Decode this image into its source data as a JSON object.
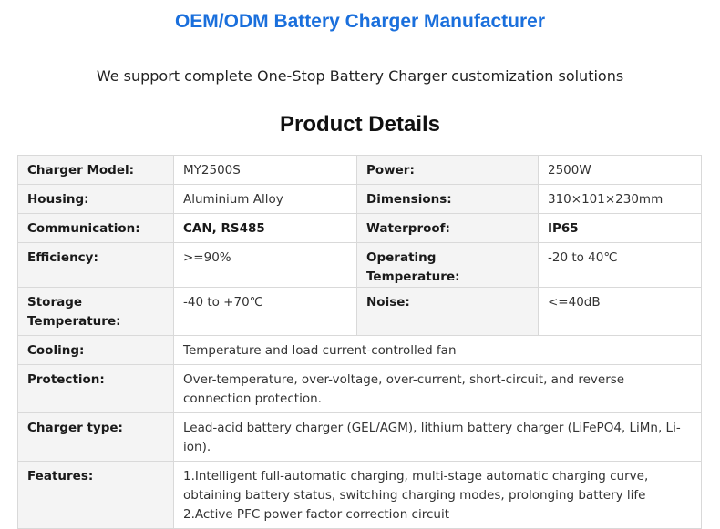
{
  "header": {
    "title": "OEM/ODM Battery Charger Manufacturer",
    "subtitle": "We support complete One-Stop Battery Charger customization solutions"
  },
  "section": {
    "title": "Product Details"
  },
  "specs": {
    "charger_model": {
      "label": "Charger Model:",
      "value": "MY2500S"
    },
    "power": {
      "label": "Power:",
      "value": "2500W"
    },
    "housing": {
      "label": "Housing:",
      "value": "Aluminium Alloy"
    },
    "dimensions": {
      "label": "Dimensions:",
      "value": "310×101×230mm"
    },
    "communication": {
      "label": "Communication:",
      "value": "CAN, RS485"
    },
    "waterproof": {
      "label": "Waterproof:",
      "value": "IP65"
    },
    "efficiency": {
      "label": "Efficiency:",
      "value": ">=90%"
    },
    "operating_temperature": {
      "label": "Operating Temperature:",
      "value": "-20 to 40℃"
    },
    "storage_temperature": {
      "label": "Storage Temperature:",
      "value": "-40 to +70℃"
    },
    "noise": {
      "label": "Noise:",
      "value": "<=40dB"
    },
    "cooling": {
      "label": "Cooling:",
      "value": "Temperature and load current-controlled fan"
    },
    "protection": {
      "label": "Protection:",
      "value": "Over-temperature, over-voltage, over-current, short-circuit, and reverse connection protection."
    },
    "charger_type": {
      "label": "Charger type:",
      "value": "Lead-acid battery charger (GEL/AGM), lithium battery charger (LiFePO4, LiMn, Li-ion)."
    },
    "features": {
      "label": "Features:",
      "lines": [
        "1.Intelligent full-automatic charging, multi-stage automatic charging curve, obtaining battery status, switching charging modes, prolonging battery life",
        "2.Active PFC power factor correction circuit"
      ]
    }
  }
}
